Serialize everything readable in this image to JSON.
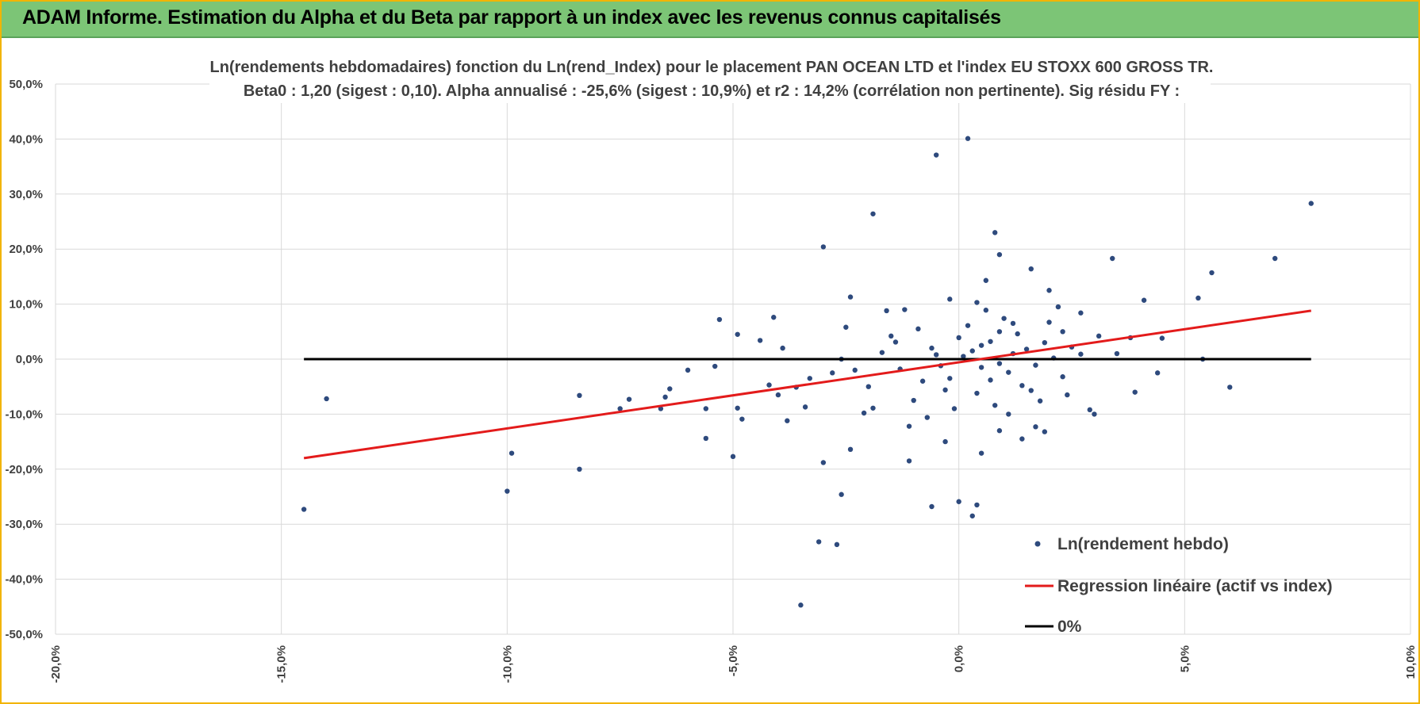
{
  "header": {
    "title": "ADAM Informe. Estimation du Alpha et du Beta par rapport à un index avec les revenus connus capitalisés"
  },
  "colors": {
    "header_bg": "#7cc576",
    "frame_border": "#f2b400",
    "points": "#2e4a7d",
    "regression": "#e31b1b",
    "zero_line": "#000000",
    "grid": "#d9d9d9"
  },
  "chart_data": {
    "type": "scatter",
    "title_line1": "Ln(rendements hebdomadaires) fonction du Ln(rend_Index) pour le placement PAN OCEAN LTD et l'index EU STOXX 600 GROSS TR.",
    "title_line2": "Beta0 : 1,20 (sigest : 0,10).  Alpha annualisé : -25,6% (sigest : 10,9%) et r2 : 14,2% (corrélation non pertinente). Sig résidu FY :",
    "xlim": [
      -20,
      10
    ],
    "ylim": [
      -50,
      50
    ],
    "x_ticks": [
      "-20,0%",
      "-15,0%",
      "-10,0%",
      "-5,0%",
      "0,0%",
      "5,0%",
      "10,0%"
    ],
    "y_ticks": [
      "50,0%",
      "40,0%",
      "30,0%",
      "20,0%",
      "10,0%",
      "0,0%",
      "-10,0%",
      "-20,0%",
      "-30,0%",
      "-40,0%",
      "-50,0%"
    ],
    "grid": true,
    "legend_position": "bottom-right",
    "series": [
      {
        "name": "Ln(rendement hebdo)",
        "type": "scatter",
        "points": [
          [
            -14.5,
            -27.3
          ],
          [
            -14.0,
            -7.2
          ],
          [
            -10.0,
            -24.0
          ],
          [
            -9.9,
            -17.1
          ],
          [
            -8.4,
            -6.6
          ],
          [
            -8.4,
            -20.0
          ],
          [
            -7.3,
            -7.3
          ],
          [
            -7.5,
            -9.0
          ],
          [
            -6.4,
            -5.4
          ],
          [
            -6.5,
            -6.9
          ],
          [
            -6.6,
            -9.0
          ],
          [
            -6.0,
            -2.0
          ],
          [
            -5.6,
            -9.0
          ],
          [
            -5.6,
            -14.4
          ],
          [
            -5.4,
            -1.3
          ],
          [
            -5.3,
            7.2
          ],
          [
            -5.0,
            -17.7
          ],
          [
            -4.9,
            -8.9
          ],
          [
            -4.8,
            -10.9
          ],
          [
            -4.9,
            4.5
          ],
          [
            -4.4,
            3.4
          ],
          [
            -4.2,
            -4.7
          ],
          [
            -4.1,
            7.6
          ],
          [
            -3.9,
            2.0
          ],
          [
            -3.8,
            -11.2
          ],
          [
            -3.4,
            -8.7
          ],
          [
            -3.0,
            20.4
          ],
          [
            -3.1,
            -33.2
          ],
          [
            -2.7,
            -33.7
          ],
          [
            -3.0,
            -18.8
          ],
          [
            -2.6,
            -24.6
          ],
          [
            -2.4,
            -16.4
          ],
          [
            -2.4,
            11.3
          ],
          [
            -2.1,
            -9.8
          ],
          [
            -1.9,
            26.4
          ],
          [
            -1.6,
            8.8
          ],
          [
            -3.5,
            -44.7
          ],
          [
            -0.5,
            37.1
          ],
          [
            0.2,
            40.1
          ],
          [
            0.8,
            23.0
          ],
          [
            0.9,
            19.0
          ],
          [
            1.6,
            16.4
          ],
          [
            2.0,
            12.5
          ],
          [
            3.4,
            18.3
          ],
          [
            4.1,
            10.7
          ],
          [
            5.6,
            15.7
          ],
          [
            5.3,
            11.1
          ],
          [
            7.0,
            18.3
          ],
          [
            7.8,
            28.3
          ],
          [
            6.0,
            -5.1
          ],
          [
            5.4,
            0.0
          ],
          [
            4.5,
            3.8
          ],
          [
            4.4,
            -2.5
          ],
          [
            3.9,
            -6.0
          ],
          [
            3.0,
            -10.0
          ],
          [
            2.9,
            -9.2
          ],
          [
            -0.6,
            -26.8
          ],
          [
            0.0,
            -25.9
          ],
          [
            0.3,
            -28.5
          ],
          [
            0.4,
            -26.5
          ],
          [
            1.4,
            -14.5
          ],
          [
            0.9,
            -13.0
          ],
          [
            1.7,
            -12.3
          ],
          [
            1.9,
            -13.2
          ],
          [
            -1.1,
            -18.5
          ],
          [
            -0.3,
            -15.0
          ],
          [
            0.5,
            -17.1
          ],
          [
            2.3,
            5.0
          ],
          [
            2.7,
            8.4
          ],
          [
            3.5,
            1.0
          ],
          [
            3.8,
            3.9
          ],
          [
            2.4,
            -6.5
          ],
          [
            1.2,
            6.5
          ],
          [
            -1.2,
            9.0
          ],
          [
            -0.2,
            10.9
          ],
          [
            0.6,
            14.3
          ],
          [
            -1.5,
            4.2
          ],
          [
            -2.3,
            -2.0
          ],
          [
            -2.6,
            0.0
          ],
          [
            -2.8,
            -2.5
          ],
          [
            -3.3,
            -3.5
          ],
          [
            -3.6,
            -5.1
          ],
          [
            -4.0,
            -6.5
          ],
          [
            -1.0,
            -7.5
          ],
          [
            -0.8,
            -4.0
          ],
          [
            -0.4,
            -1.2
          ],
          [
            0.1,
            0.5
          ],
          [
            0.3,
            1.5
          ],
          [
            0.5,
            2.5
          ],
          [
            0.7,
            3.2
          ],
          [
            0.9,
            -0.8
          ],
          [
            1.1,
            -2.4
          ],
          [
            1.3,
            4.6
          ],
          [
            1.5,
            1.8
          ],
          [
            1.7,
            -1.1
          ],
          [
            1.9,
            3.0
          ],
          [
            2.1,
            0.2
          ],
          [
            2.3,
            -3.2
          ],
          [
            2.5,
            2.2
          ],
          [
            2.7,
            0.9
          ],
          [
            -0.2,
            -3.5
          ],
          [
            -0.6,
            2.0
          ],
          [
            -0.9,
            5.5
          ],
          [
            -1.3,
            -1.8
          ],
          [
            -1.7,
            1.2
          ],
          [
            -2.0,
            -5.0
          ],
          [
            0.4,
            -6.2
          ],
          [
            0.8,
            -8.4
          ],
          [
            1.0,
            7.4
          ],
          [
            0.2,
            6.1
          ],
          [
            -0.1,
            -9.0
          ],
          [
            1.4,
            -4.8
          ],
          [
            0.6,
            8.9
          ],
          [
            -0.7,
            -10.6
          ],
          [
            2.0,
            6.7
          ],
          [
            1.8,
            -7.6
          ],
          [
            -1.9,
            -8.9
          ],
          [
            0.0,
            3.9
          ],
          [
            -0.3,
            -5.6
          ],
          [
            0.5,
            -1.5
          ],
          [
            1.2,
            1.0
          ],
          [
            0.7,
            -3.8
          ],
          [
            -0.5,
            0.8
          ],
          [
            0.9,
            5.0
          ],
          [
            -1.4,
            3.1
          ],
          [
            1.6,
            -5.7
          ],
          [
            -2.5,
            5.8
          ],
          [
            2.2,
            9.5
          ],
          [
            3.1,
            4.2
          ],
          [
            -1.1,
            -12.2
          ],
          [
            0.4,
            10.3
          ],
          [
            1.1,
            -10.0
          ]
        ]
      },
      {
        "name": "Regression linéaire (actif vs index)",
        "type": "line",
        "x": [
          -14.5,
          7.8
        ],
        "y": [
          -18.0,
          8.8
        ]
      },
      {
        "name": "0%",
        "type": "line",
        "x": [
          -14.5,
          7.8
        ],
        "y": [
          0.0,
          0.0
        ]
      }
    ]
  }
}
